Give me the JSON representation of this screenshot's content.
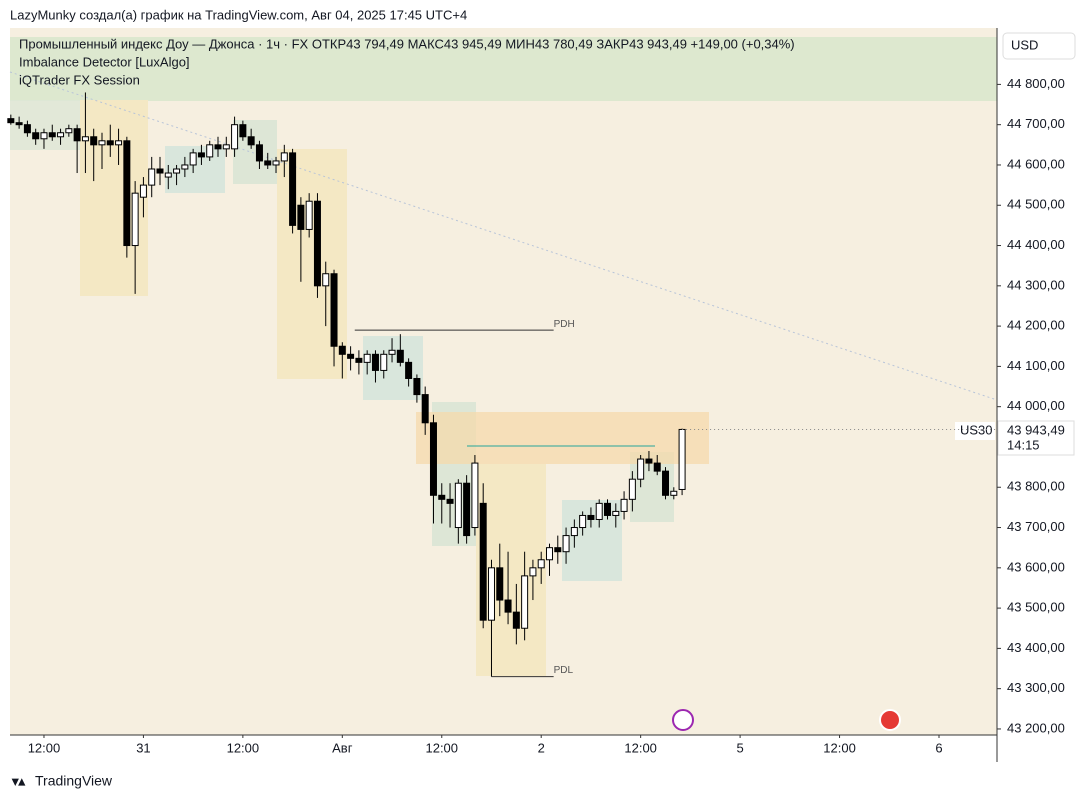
{
  "chart_data": {
    "type": "candlestick",
    "header": "LazyMunky создал(а) график на TradingView.com, Авг 04, 2025 17:45 UTC+4",
    "legend_lines": [
      "Промышленный индекс Доу — Джонса · 1ч · FX  ОТКР43 794,49  МАКС43 945,49  МИН43 780,49  ЗАКР43 943,49  +149,00 (+0,34%)",
      "Imbalance Detector [LuxAlgo]",
      "iQTrader FX Session"
    ],
    "currency": "USD",
    "symbol": "US30",
    "countdown": "14:15",
    "footer": "TradingView",
    "last_price": {
      "value": 43943.49,
      "label": "43 943,49"
    },
    "up_color": "#ffffff",
    "down_color": "#000000",
    "outline_color": "#000000",
    "xlim": [
      -4.1,
      115
    ],
    "ylim": [
      43185,
      44940
    ],
    "xticks": [
      {
        "value": 0,
        "label": "12:00"
      },
      {
        "value": 12,
        "label": "31"
      },
      {
        "value": 24,
        "label": "12:00"
      },
      {
        "value": 36,
        "label": "Авг"
      },
      {
        "value": 48,
        "label": "12:00"
      },
      {
        "value": 60,
        "label": "2"
      },
      {
        "value": 72,
        "label": "12:00"
      },
      {
        "value": 84,
        "label": "5"
      },
      {
        "value": 96,
        "label": "12:00"
      },
      {
        "value": 108,
        "label": "6"
      }
    ],
    "yticks": [
      {
        "value": 44800,
        "label": "44 800,00"
      },
      {
        "value": 44700,
        "label": "44 700,00"
      },
      {
        "value": 44600,
        "label": "44 600,00"
      },
      {
        "value": 44500,
        "label": "44 500,00"
      },
      {
        "value": 44400,
        "label": "44 400,00"
      },
      {
        "value": 44300,
        "label": "44 300,00"
      },
      {
        "value": 44200,
        "label": "44 200,00"
      },
      {
        "value": 44100,
        "label": "44 100,00"
      },
      {
        "value": 44000,
        "label": "44 000,00"
      },
      {
        "value": 43800,
        "label": "43 800,00"
      },
      {
        "value": 43700,
        "label": "43 700,00"
      },
      {
        "value": 43600,
        "label": "43 600,00"
      },
      {
        "value": 43500,
        "label": "43 500,00"
      },
      {
        "value": 43400,
        "label": "43 400,00"
      },
      {
        "value": 43300,
        "label": "43 300,00"
      },
      {
        "value": 43200,
        "label": "43 200,00"
      }
    ],
    "annotations": [
      {
        "text": "PDH",
        "value": 44190,
        "from": 37.5,
        "to": 61.5
      },
      {
        "text": "PDL",
        "value": 43330,
        "from": 54,
        "to": 61.5
      }
    ],
    "x": [
      -4,
      -3,
      -2,
      -1,
      0,
      1,
      2,
      3,
      4,
      5,
      6,
      7,
      8,
      9,
      10,
      11,
      12,
      13,
      14,
      15,
      16,
      17,
      18,
      19,
      20,
      21,
      22,
      23,
      24,
      25,
      26,
      27,
      28,
      29,
      30,
      31,
      32,
      33,
      34,
      35,
      36,
      37,
      38,
      39,
      40,
      41,
      42,
      43,
      44,
      45,
      46,
      47,
      48,
      49,
      50,
      51,
      52,
      53,
      54,
      55,
      56,
      57,
      58,
      59,
      60,
      61,
      62,
      63,
      64,
      65,
      66,
      67,
      68,
      69,
      70,
      71,
      72,
      73,
      74,
      75,
      76,
      77
    ],
    "open": [
      44715,
      44705,
      44700,
      44680,
      44665,
      44680,
      44670,
      44680,
      44690,
      44660,
      44670,
      44650,
      44660,
      44650,
      44660,
      44400,
      44520,
      44550,
      44590,
      44570,
      44580,
      44590,
      44600,
      44630,
      44620,
      44650,
      44640,
      44640,
      44700,
      44670,
      44650,
      44610,
      44600,
      44610,
      44630,
      44500,
      44440,
      44510,
      44300,
      44330,
      44150,
      44130,
      44120,
      44110,
      44130,
      44090,
      44130,
      44140,
      44110,
      44070,
      44030,
      43960,
      43780,
      43770,
      43700,
      43810,
      43700,
      43760,
      43470,
      43600,
      43520,
      43490,
      43450,
      43580,
      43600,
      43620,
      43650,
      43640,
      43680,
      43700,
      43730,
      43720,
      43760,
      43730,
      43740,
      43770,
      43820,
      43870,
      43860,
      43840,
      43780,
      43794.49
    ],
    "high": [
      44725,
      44720,
      44710,
      44690,
      44690,
      44700,
      44690,
      44700,
      44700,
      44780,
      44690,
      44680,
      44700,
      44690,
      44670,
      44560,
      44570,
      44620,
      44620,
      44600,
      44600,
      44620,
      44640,
      44650,
      44660,
      44670,
      44670,
      44720,
      44710,
      44690,
      44660,
      44630,
      44620,
      44650,
      44640,
      44520,
      44530,
      44530,
      44360,
      44340,
      44160,
      44150,
      44140,
      44140,
      44140,
      44140,
      44170,
      44180,
      44120,
      44080,
      44050,
      43980,
      43810,
      43810,
      43820,
      43830,
      43880,
      43810,
      43620,
      43660,
      43640,
      43560,
      43640,
      43620,
      43640,
      43660,
      43680,
      43700,
      43720,
      43740,
      43750,
      43770,
      43770,
      43760,
      43790,
      43840,
      43880,
      43890,
      43880,
      43850,
      43800,
      43945.49
    ],
    "low": [
      44700,
      44690,
      44670,
      44650,
      44640,
      44660,
      44650,
      44670,
      44580,
      44580,
      44560,
      44590,
      44620,
      44600,
      44370,
      44280,
      44470,
      44520,
      44550,
      44540,
      44550,
      44570,
      44580,
      44600,
      44610,
      44620,
      44620,
      44620,
      44660,
      44640,
      44590,
      44590,
      44580,
      44570,
      44430,
      44310,
      44420,
      44270,
      44200,
      44100,
      44070,
      44090,
      44080,
      44080,
      44060,
      44070,
      44110,
      44100,
      44050,
      44010,
      43930,
      43710,
      43710,
      43700,
      43660,
      43660,
      43680,
      43450,
      43330,
      43480,
      43460,
      43410,
      43420,
      43520,
      43560,
      43580,
      43610,
      43610,
      43650,
      43680,
      43700,
      43700,
      43720,
      43700,
      43720,
      43740,
      43800,
      43840,
      43830,
      43770,
      43770,
      43780.49
    ],
    "close": [
      44705,
      44700,
      44680,
      44665,
      44680,
      44670,
      44680,
      44690,
      44660,
      44670,
      44650,
      44660,
      44650,
      44660,
      44400,
      44530,
      44550,
      44590,
      44580,
      44580,
      44590,
      44600,
      44630,
      44620,
      44650,
      44640,
      44650,
      44700,
      44670,
      44650,
      44610,
      44600,
      44610,
      44630,
      44450,
      44440,
      44510,
      44300,
      44330,
      44150,
      44130,
      44120,
      44110,
      44130,
      44090,
      44130,
      44140,
      44110,
      44070,
      44030,
      43960,
      43780,
      43770,
      43760,
      43810,
      43680,
      43860,
      43470,
      43600,
      43520,
      43490,
      43450,
      43580,
      43600,
      43620,
      43650,
      43640,
      43680,
      43700,
      43730,
      43720,
      43760,
      43730,
      43740,
      43770,
      43820,
      43870,
      43860,
      43840,
      43780,
      43790,
      43943.49
    ]
  }
}
